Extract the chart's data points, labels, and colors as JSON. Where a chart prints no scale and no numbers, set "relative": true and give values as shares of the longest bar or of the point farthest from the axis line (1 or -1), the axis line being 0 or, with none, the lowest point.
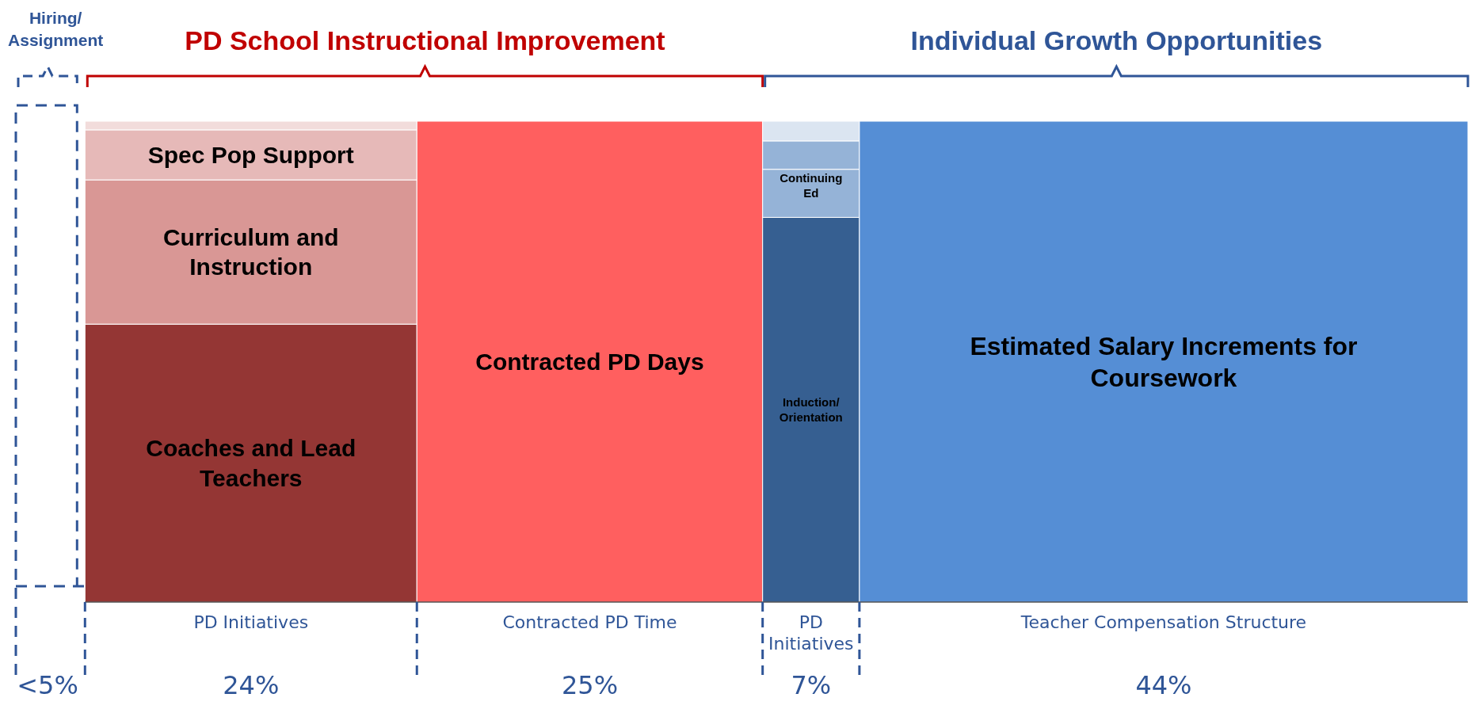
{
  "chart_data": {
    "type": "bar",
    "stacked": true,
    "relative": true,
    "categories": [
      null,
      "PD Initiatives",
      "Contracted PD Time",
      "PD Initiatives",
      "Teacher Compensation Structure"
    ],
    "series": [
      {
        "name": "Coaches and Lead Teachers",
        "color": "#943634",
        "values": [
          null,
          0.578,
          null,
          null,
          null
        ]
      },
      {
        "name": "Curriculum and Instruction",
        "color": "#d99795",
        "values": [
          null,
          0.3,
          null,
          null,
          null
        ]
      },
      {
        "name": "Spec Pop Support",
        "color": "#e6b9b8",
        "values": [
          null,
          0.104,
          null,
          null,
          null
        ]
      },
      {
        "color": "#f2dcdb",
        "values": [
          null,
          0.018,
          null,
          null,
          null
        ]
      },
      {
        "name": "Contracted PD Days",
        "color": "#ff5f5f",
        "values": [
          null,
          null,
          1,
          null,
          null
        ]
      },
      {
        "name": "Induction/ Orientation",
        "color": "#365f91",
        "values": [
          null,
          null,
          null,
          0.8,
          null
        ]
      },
      {
        "name": "Continuing Ed",
        "color": "#95b3d7",
        "values": [
          null,
          null,
          null,
          0.1,
          null
        ]
      },
      {
        "color": "#95b3d7",
        "values": [
          null,
          null,
          null,
          0.059,
          null
        ]
      },
      {
        "color": "#dbe5f1",
        "values": [
          null,
          null,
          null,
          0.041,
          null
        ]
      },
      {
        "name": "Estimated Salary Increments for Coursework",
        "color": "#558ed5",
        "values": [
          null,
          null,
          null,
          null,
          1
        ]
      }
    ],
    "annotations": [
      "Hiring/ Assignment",
      "PD School Instructional Improvement",
      "Individual Growth Opportunities",
      "<5%",
      "24%",
      "25%",
      "7%",
      "44%"
    ]
  }
}
